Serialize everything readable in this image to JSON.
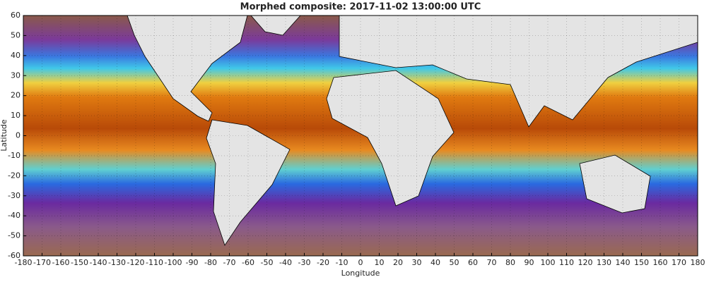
{
  "chart_data": {
    "type": "map",
    "title": "Morphed composite: 2017-11-02 13:00:00 UTC",
    "x_label": "Longitude",
    "y_label": "Latitude",
    "xlim": [
      -180,
      180
    ],
    "ylim": [
      -60,
      60
    ],
    "xticks": [
      -180,
      -170,
      -160,
      -150,
      -140,
      -130,
      -120,
      -110,
      -100,
      -90,
      -80,
      -70,
      -60,
      -50,
      -40,
      -30,
      -20,
      -10,
      0,
      10,
      20,
      30,
      40,
      50,
      60,
      70,
      80,
      90,
      100,
      110,
      120,
      130,
      140,
      150,
      160,
      170,
      180
    ],
    "yticks": [
      -60,
      -50,
      -40,
      -30,
      -20,
      -10,
      0,
      10,
      20,
      30,
      40,
      50,
      60
    ],
    "grid": true
  }
}
